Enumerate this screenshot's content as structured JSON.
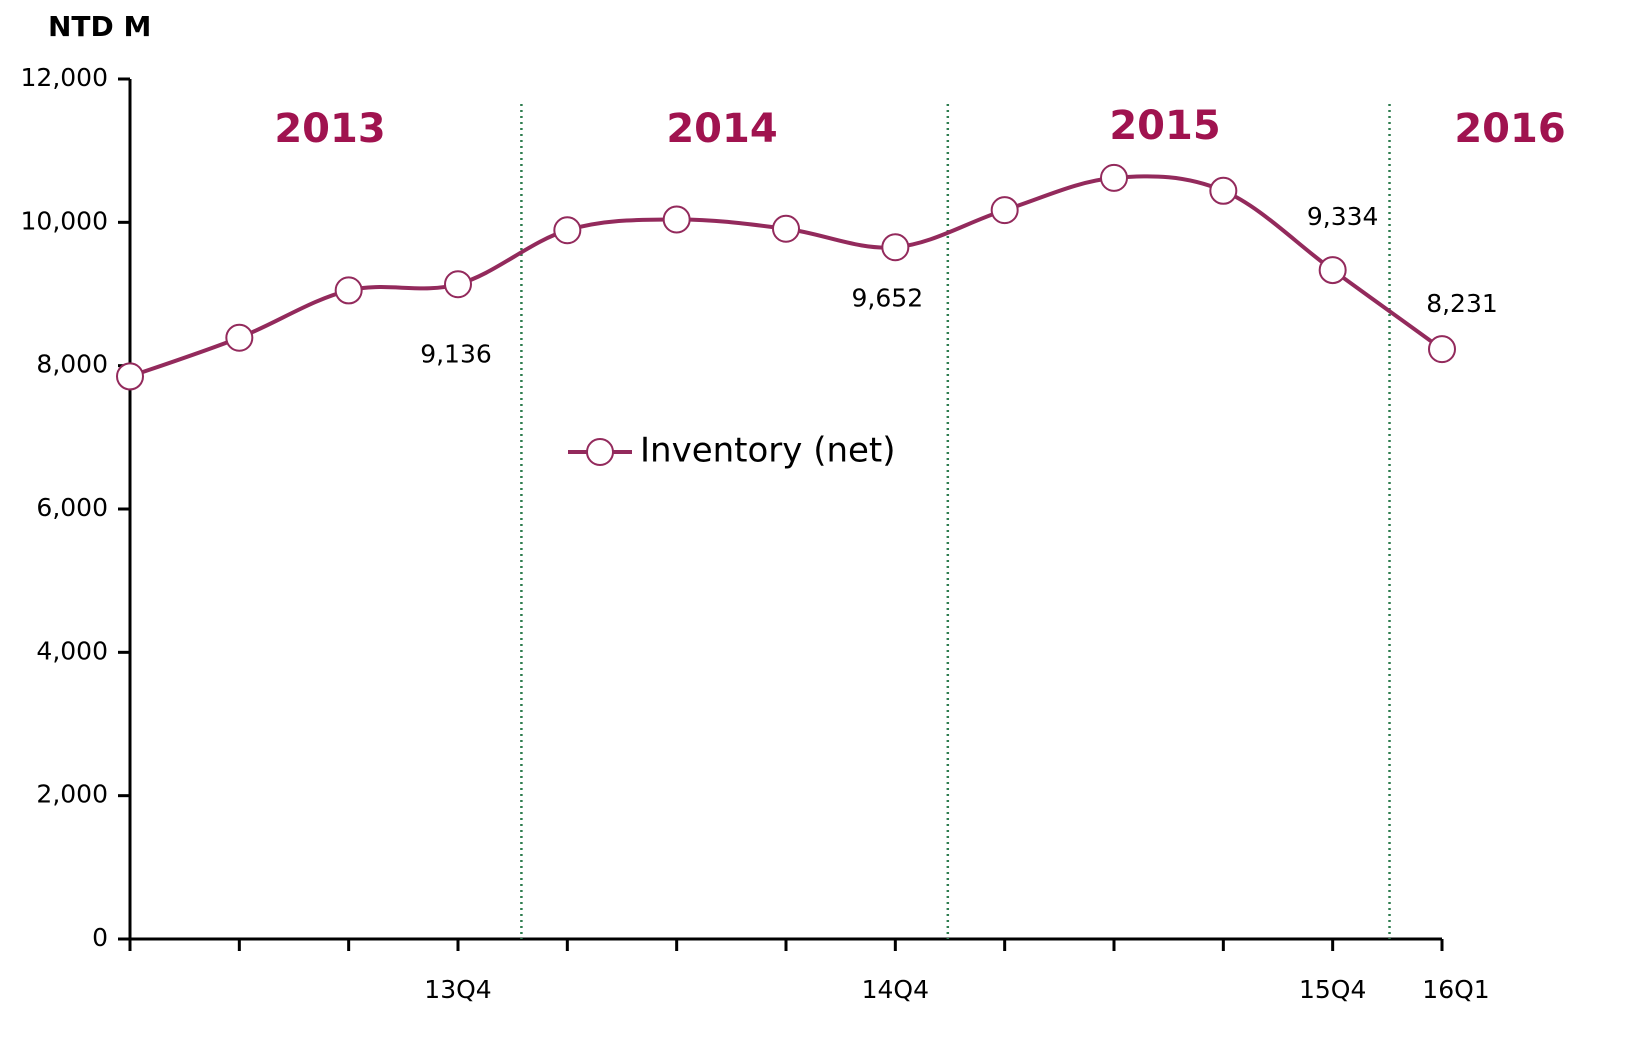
{
  "chart_data": {
    "type": "line",
    "unit_label": "NTD M",
    "years": [
      "2013",
      "2014",
      "2015",
      "2016"
    ],
    "categories": [
      null,
      null,
      null,
      "13Q4",
      null,
      null,
      null,
      "14Q4",
      null,
      null,
      null,
      "15Q4",
      "16Q1"
    ],
    "series": [
      {
        "name": "Inventory (net)",
        "color": "#932a5c",
        "values": [
          7850,
          8390,
          9050,
          9136,
          9890,
          10040,
          9910,
          9652,
          10170,
          10620,
          10440,
          9334,
          8231
        ],
        "value_labels": [
          null,
          null,
          null,
          "9,136",
          null,
          null,
          null,
          "9,652",
          null,
          null,
          null,
          "9,334",
          "8,231"
        ]
      }
    ],
    "ylim": [
      0,
      12000
    ],
    "yticks": [
      0,
      {
        "value": 2000,
        "label": "2,000"
      },
      {
        "value": 4000,
        "label": "4,000"
      },
      {
        "value": 6000,
        "label": "6,000"
      },
      {
        "value": 8000,
        "label": "8,000"
      },
      {
        "value": 10000,
        "label": "10,000"
      },
      {
        "value": 12000,
        "label": "12,000"
      }
    ],
    "grid": false
  }
}
